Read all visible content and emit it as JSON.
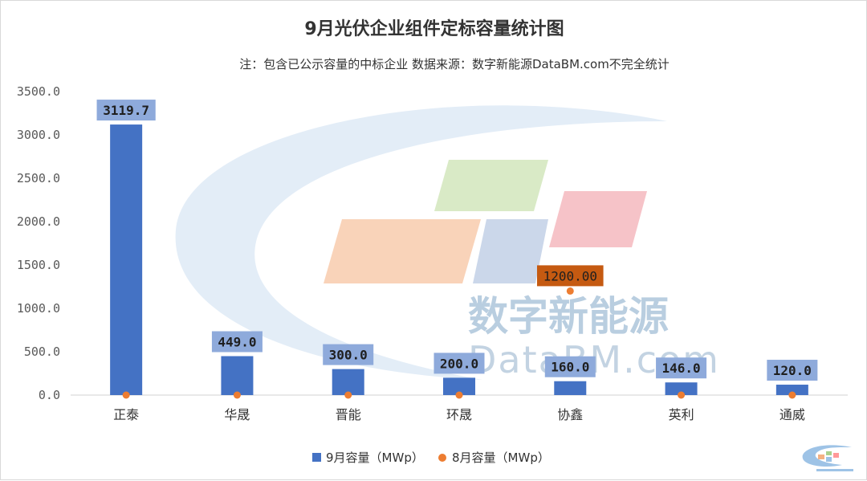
{
  "chart_data": {
    "type": "bar",
    "title": "9月光伏企业组件定标容量统计图",
    "subtitle": "注：包含已公示容量的中标企业 数据来源：数字新能源DataBM.com不完全统计",
    "categories": [
      "正泰",
      "华晟",
      "晋能",
      "环晟",
      "协鑫",
      "英利",
      "通威"
    ],
    "series": [
      {
        "name": "9月容量（MWp）",
        "type": "bar",
        "color": "#4472c4",
        "values": [
          3119.7,
          449.0,
          300.0,
          200.0,
          160.0,
          146.0,
          120.0
        ],
        "labels": [
          "3119.7",
          "449.0",
          "300.0",
          "200.0",
          "160.0",
          "146.0",
          "120.0"
        ]
      },
      {
        "name": "8月容量（MWp）",
        "type": "scatter",
        "color": "#ed7d31",
        "values": [
          0,
          0,
          0,
          0,
          1200.0,
          0,
          0
        ],
        "labels": [
          "",
          "",
          "",
          "",
          "1200.00",
          "",
          ""
        ]
      }
    ],
    "yticks": [
      "0.0",
      "500.0",
      "1000.0",
      "1500.0",
      "2000.0",
      "2500.0",
      "3000.0",
      "3500.0"
    ],
    "ylim": [
      0,
      3500
    ],
    "xlabel": "",
    "ylabel": "",
    "grid": false,
    "legend_position": "bottom-center"
  },
  "watermark": {
    "brand_cn": "数字新能源",
    "brand_en": "DataBM.com",
    "logo_icon": "databm-logo-icon",
    "colors": {
      "orange": "#f8cbad",
      "green": "#d5e8c0",
      "blue": "#c5d3e8",
      "pink": "#f4b8be",
      "swoosh": "#e3edf7"
    }
  }
}
